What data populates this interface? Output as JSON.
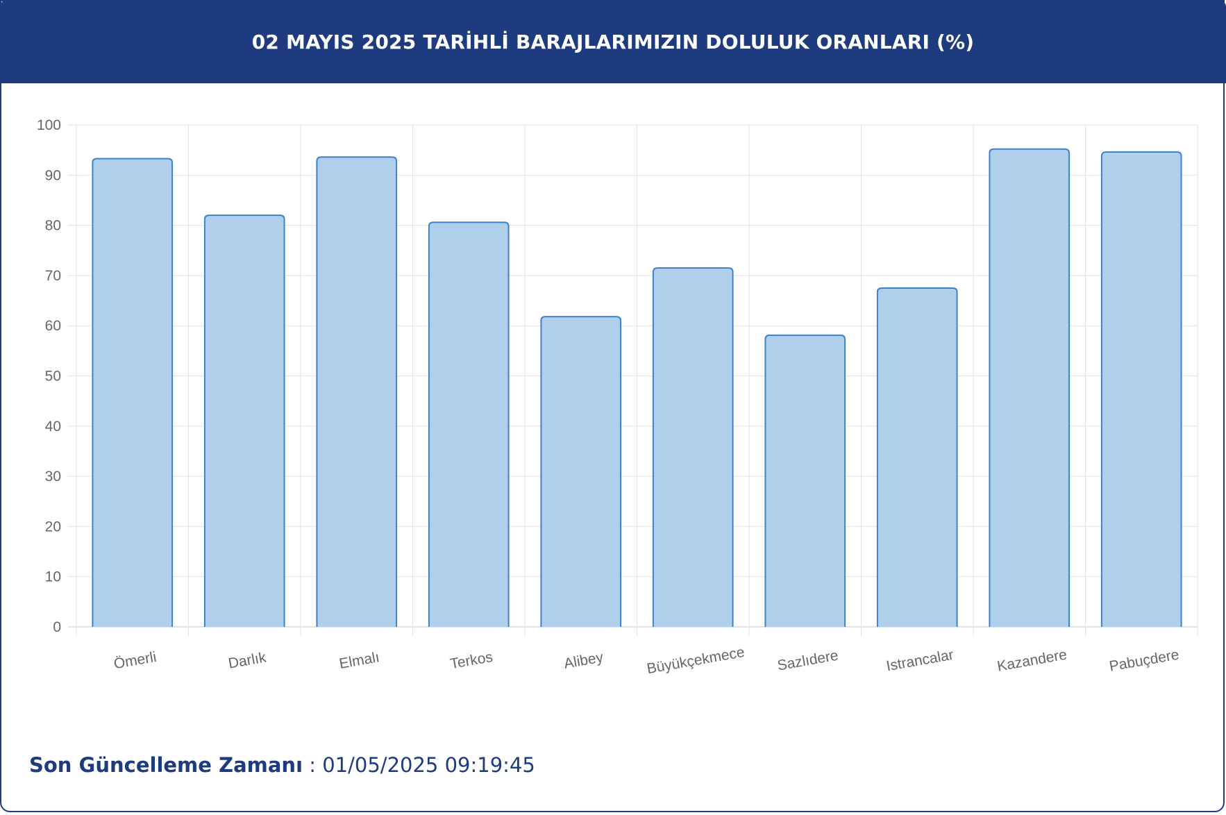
{
  "header": {
    "title": "02 MAYIS 2025 TARİHLİ BARAJLARIMIZIN DOLULUK ORANLARI (%)"
  },
  "footer": {
    "label": "Son Güncelleme Zamanı",
    "separator": " : ",
    "value": "01/05/2025 09:19:45"
  },
  "colors": {
    "header": "#1d3b7e",
    "bar_fill": "#b0cfea",
    "bar_stroke": "#3d82c9",
    "grid": "#e2e2e2",
    "tick_text": "#666666"
  },
  "chart_data": {
    "type": "bar",
    "categories": [
      "Ömerli",
      "Darlık",
      "Elmalı",
      "Terkos",
      "Alibey",
      "Büyükçekmece",
      "Sazlıdere",
      "Istrancalar",
      "Kazandere",
      "Pabuçdere"
    ],
    "values": [
      93.3,
      82.0,
      93.6,
      80.6,
      61.8,
      71.5,
      58.1,
      67.5,
      95.2,
      94.6
    ],
    "title": "02 MAYIS 2025 TARİHLİ BARAJLARIMIZIN DOLULUK ORANLARI (%)",
    "xlabel": "",
    "ylabel": "",
    "ylim": [
      0,
      100
    ],
    "yticks": [
      0,
      10,
      20,
      30,
      40,
      50,
      60,
      70,
      80,
      90,
      100
    ],
    "grid": true,
    "legend": "none"
  }
}
